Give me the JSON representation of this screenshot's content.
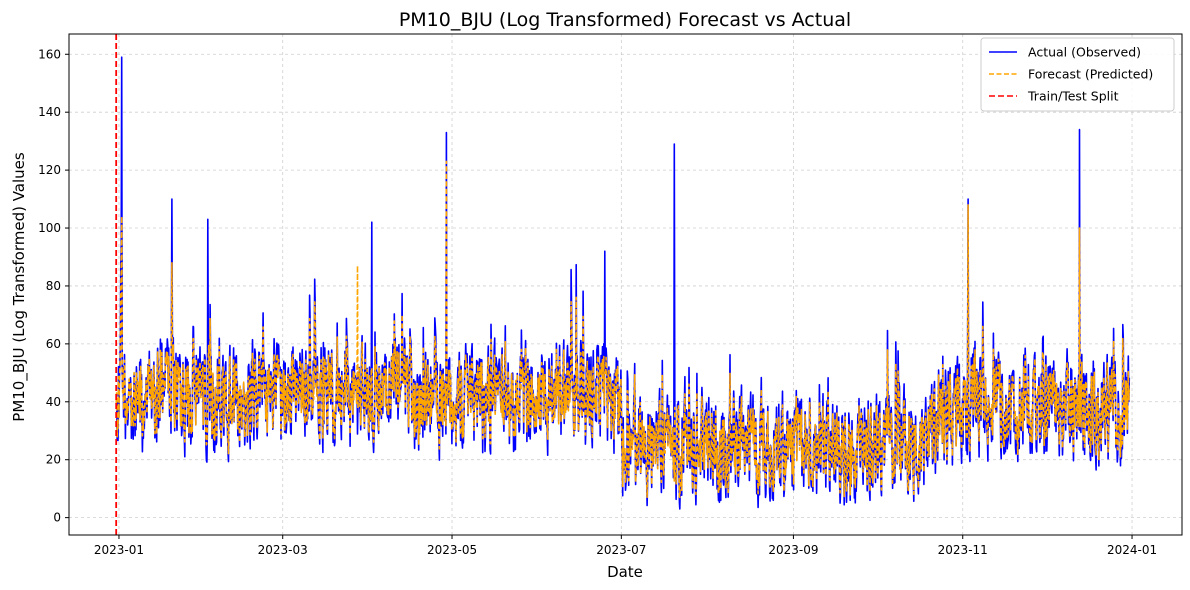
{
  "chart_data": {
    "type": "line",
    "title": "PM10_BJU (Log Transformed) Forecast vs Actual",
    "xlabel": "Date",
    "ylabel": "PM10_BJU (Log Transformed) Values",
    "xlim": [
      "2022-12-14",
      "2024-01-19"
    ],
    "ylim": [
      -6,
      167
    ],
    "x_ticks": [
      "2023-01",
      "2023-03",
      "2023-05",
      "2023-07",
      "2023-09",
      "2023-11",
      "2024-01"
    ],
    "y_ticks": [
      0,
      20,
      40,
      60,
      80,
      100,
      120,
      140,
      160
    ],
    "grid": true,
    "legend_position": "top-right",
    "date_range": [
      "2022-12-31",
      "2023-12-31"
    ],
    "series": [
      {
        "name": "Actual (Observed)",
        "color": "#0000ff",
        "style": "solid",
        "x": [
          "2023-01-02",
          "2023-01-20",
          "2023-02-02",
          "2023-04-02",
          "2023-04-29",
          "2023-06-25",
          "2023-07-20",
          "2023-11-03",
          "2023-12-13"
        ],
        "y": [
          159,
          110,
          103,
          102,
          133,
          92,
          129,
          110,
          134
        ]
      },
      {
        "name": "Forecast (Predicted)",
        "color": "#ffa500",
        "style": "dashed",
        "x": [
          "2023-01-02",
          "2023-01-20",
          "2023-03-28",
          "2023-04-29",
          "2023-11-03",
          "2023-12-13"
        ],
        "y": [
          104,
          88,
          87,
          123,
          108,
          100
        ]
      }
    ],
    "vertical_line": {
      "name": "Train/Test Split",
      "x": "2022-12-31",
      "color": "#ff0000",
      "style": "dashed"
    }
  }
}
